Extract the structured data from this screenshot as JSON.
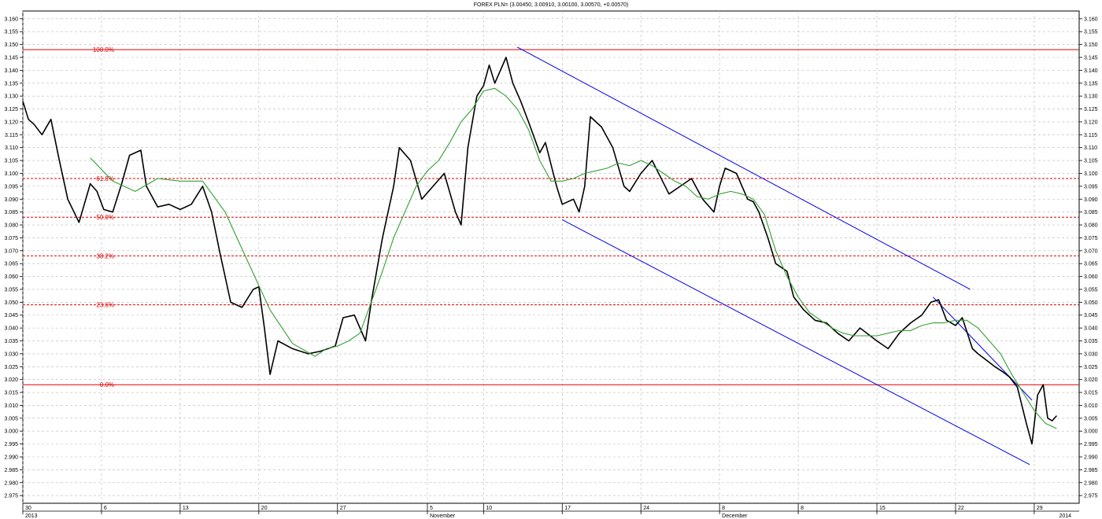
{
  "title": "FOREX PLN= (3.00450, 3.00910, 3.00100, 3.00570, +0.00570)",
  "chart_data": {
    "type": "line",
    "title": "FOREX PLN= (3.00450, 3.00910, 3.00100, 3.00570, +0.00570)",
    "ylim": [
      2.972,
      3.163
    ],
    "yticks": [
      "3.160",
      "3.155",
      "3.150",
      "3.145",
      "3.140",
      "3.135",
      "3.130",
      "3.125",
      "3.120",
      "3.115",
      "3.110",
      "3.105",
      "3.100",
      "3.095",
      "3.090",
      "3.085",
      "3.080",
      "3.075",
      "3.070",
      "3.065",
      "3.060",
      "3.055",
      "3.050",
      "3.045",
      "3.040",
      "3.035",
      "3.030",
      "3.025",
      "3.020",
      "3.015",
      "3.010",
      "3.005",
      "3.000",
      "2.995",
      "2.990",
      "2.985",
      "2.980",
      "2.975"
    ],
    "x_day_ticks": [
      {
        "label": "30",
        "x": 30
      },
      {
        "label": "6",
        "x": 37
      },
      {
        "label": "13",
        "x": 44
      },
      {
        "label": "20",
        "x": 51
      },
      {
        "label": "27",
        "x": 58
      },
      {
        "label": "5",
        "x": 66
      },
      {
        "label": "10",
        "x": 71
      },
      {
        "label": "17",
        "x": 78
      },
      {
        "label": "24",
        "x": 85
      },
      {
        "label": "8",
        "x": 92
      },
      {
        "label": "8",
        "x": 99
      },
      {
        "label": "15",
        "x": 106
      },
      {
        "label": "22",
        "x": 113
      },
      {
        "label": "29",
        "x": 120
      }
    ],
    "x_period_labels": [
      {
        "label": "2013",
        "x": 30
      },
      {
        "label": "November",
        "x": 66
      },
      {
        "label": "December",
        "x": 92
      },
      {
        "label": "2014",
        "x": 122
      }
    ],
    "xlim": [
      30,
      124
    ],
    "grid": true,
    "series": [
      {
        "color": "#000000",
        "points": [
          [
            30,
            3.128
          ],
          [
            30.5,
            3.121
          ],
          [
            31,
            3.119
          ],
          [
            31.7,
            3.115
          ],
          [
            32.5,
            3.121
          ],
          [
            33.2,
            3.106
          ],
          [
            34,
            3.09
          ],
          [
            35,
            3.081
          ],
          [
            36,
            3.096
          ],
          [
            36.6,
            3.093
          ],
          [
            37.2,
            3.086
          ],
          [
            38,
            3.085
          ],
          [
            38.8,
            3.096
          ],
          [
            39.5,
            3.107
          ],
          [
            40.5,
            3.109
          ],
          [
            41,
            3.095
          ],
          [
            42,
            3.087
          ],
          [
            43,
            3.088
          ],
          [
            44,
            3.086
          ],
          [
            45,
            3.088
          ],
          [
            46,
            3.095
          ],
          [
            46.8,
            3.085
          ],
          [
            47.5,
            3.07
          ],
          [
            48.5,
            3.05
          ],
          [
            49.5,
            3.048
          ],
          [
            50.5,
            3.055
          ],
          [
            51,
            3.056
          ],
          [
            51.5,
            3.04
          ],
          [
            52,
            3.022
          ],
          [
            52.7,
            3.035
          ],
          [
            54,
            3.032
          ],
          [
            55.4,
            3.03
          ],
          [
            56.5,
            3.031
          ],
          [
            57.8,
            3.033
          ],
          [
            58.5,
            3.044
          ],
          [
            59.5,
            3.045
          ],
          [
            60.5,
            3.035
          ],
          [
            61,
            3.05
          ],
          [
            62,
            3.075
          ],
          [
            63,
            3.095
          ],
          [
            63.5,
            3.11
          ],
          [
            64.5,
            3.105
          ],
          [
            65.5,
            3.09
          ],
          [
            66.5,
            3.095
          ],
          [
            67.5,
            3.1
          ],
          [
            68.5,
            3.085
          ],
          [
            69,
            3.08
          ],
          [
            69.6,
            3.11
          ],
          [
            70.4,
            3.13
          ],
          [
            71,
            3.134
          ],
          [
            71.5,
            3.142
          ],
          [
            72,
            3.135
          ],
          [
            73,
            3.145
          ],
          [
            73.6,
            3.135
          ],
          [
            74.3,
            3.128
          ],
          [
            75,
            3.12
          ],
          [
            76,
            3.108
          ],
          [
            76.5,
            3.112
          ],
          [
            77.5,
            3.095
          ],
          [
            78,
            3.088
          ],
          [
            79,
            3.09
          ],
          [
            79.5,
            3.085
          ],
          [
            80,
            3.095
          ],
          [
            80.5,
            3.122
          ],
          [
            81.5,
            3.118
          ],
          [
            82.5,
            3.11
          ],
          [
            83.5,
            3.095
          ],
          [
            84,
            3.093
          ],
          [
            85,
            3.1
          ],
          [
            86,
            3.105
          ],
          [
            87.5,
            3.092
          ],
          [
            88.5,
            3.095
          ],
          [
            89.5,
            3.098
          ],
          [
            90.5,
            3.09
          ],
          [
            91.5,
            3.085
          ],
          [
            92,
            3.095
          ],
          [
            92.5,
            3.102
          ],
          [
            93.5,
            3.1
          ],
          [
            94.5,
            3.09
          ],
          [
            95,
            3.089
          ],
          [
            95.5,
            3.085
          ],
          [
            96.3,
            3.075
          ],
          [
            97,
            3.065
          ],
          [
            98,
            3.062
          ],
          [
            98.6,
            3.052
          ],
          [
            99.5,
            3.047
          ],
          [
            100.5,
            3.043
          ],
          [
            101.5,
            3.042
          ],
          [
            102.5,
            3.038
          ],
          [
            103.5,
            3.035
          ],
          [
            104.5,
            3.04
          ],
          [
            106,
            3.035
          ],
          [
            107,
            3.032
          ],
          [
            108,
            3.038
          ],
          [
            109,
            3.042
          ],
          [
            110,
            3.045
          ],
          [
            110.8,
            3.05
          ],
          [
            111.5,
            3.051
          ],
          [
            112.2,
            3.043
          ],
          [
            113,
            3.041
          ],
          [
            113.6,
            3.044
          ],
          [
            114.5,
            3.032
          ],
          [
            115,
            3.03
          ],
          [
            116.5,
            3.025
          ],
          [
            117.2,
            3.023
          ],
          [
            117.8,
            3.021
          ],
          [
            118.5,
            3.017
          ],
          [
            119.3,
            3.003
          ],
          [
            119.8,
            2.995
          ],
          [
            120.3,
            3.014
          ],
          [
            120.8,
            3.018
          ],
          [
            121.2,
            3.005
          ],
          [
            121.6,
            3.004
          ],
          [
            122,
            3.006
          ]
        ]
      },
      {
        "color": "#33a033",
        "points": [
          [
            36,
            3.106
          ],
          [
            38,
            3.097
          ],
          [
            40,
            3.093
          ],
          [
            42,
            3.098
          ],
          [
            44,
            3.097
          ],
          [
            46,
            3.097
          ],
          [
            48,
            3.085
          ],
          [
            50,
            3.066
          ],
          [
            52,
            3.047
          ],
          [
            54,
            3.034
          ],
          [
            56,
            3.029
          ],
          [
            57,
            3.032
          ],
          [
            58,
            3.033
          ],
          [
            59,
            3.035
          ],
          [
            60,
            3.038
          ],
          [
            61,
            3.05
          ],
          [
            62,
            3.062
          ],
          [
            63,
            3.075
          ],
          [
            64,
            3.085
          ],
          [
            65,
            3.095
          ],
          [
            66,
            3.101
          ],
          [
            67,
            3.105
          ],
          [
            68,
            3.112
          ],
          [
            69,
            3.12
          ],
          [
            70,
            3.125
          ],
          [
            71,
            3.132
          ],
          [
            72,
            3.133
          ],
          [
            73,
            3.13
          ],
          [
            74,
            3.125
          ],
          [
            75,
            3.117
          ],
          [
            76,
            3.105
          ],
          [
            77,
            3.097
          ],
          [
            78,
            3.097
          ],
          [
            79,
            3.098
          ],
          [
            80,
            3.1
          ],
          [
            81,
            3.101
          ],
          [
            82,
            3.102
          ],
          [
            83,
            3.104
          ],
          [
            84,
            3.103
          ],
          [
            85,
            3.105
          ],
          [
            86,
            3.103
          ],
          [
            87,
            3.1
          ],
          [
            88,
            3.097
          ],
          [
            89,
            3.095
          ],
          [
            90,
            3.091
          ],
          [
            91,
            3.09
          ],
          [
            92,
            3.092
          ],
          [
            93,
            3.093
          ],
          [
            94,
            3.092
          ],
          [
            95,
            3.09
          ],
          [
            96,
            3.084
          ],
          [
            97,
            3.07
          ],
          [
            98,
            3.06
          ],
          [
            99,
            3.052
          ],
          [
            100,
            3.046
          ],
          [
            101,
            3.043
          ],
          [
            102,
            3.04
          ],
          [
            103,
            3.038
          ],
          [
            104,
            3.037
          ],
          [
            105,
            3.037
          ],
          [
            106,
            3.037
          ],
          [
            107,
            3.038
          ],
          [
            108,
            3.039
          ],
          [
            109,
            3.039
          ],
          [
            110,
            3.041
          ],
          [
            111,
            3.042
          ],
          [
            112,
            3.042
          ],
          [
            113,
            3.043
          ],
          [
            114,
            3.043
          ],
          [
            115,
            3.04
          ],
          [
            116,
            3.035
          ],
          [
            117,
            3.03
          ],
          [
            118,
            3.022
          ],
          [
            119,
            3.015
          ],
          [
            120,
            3.008
          ],
          [
            121,
            3.003
          ],
          [
            122,
            3.001
          ]
        ]
      }
    ],
    "trendlines": [
      {
        "color": "#0000ee",
        "from": [
          74,
          3.149
        ],
        "to": [
          114.3,
          3.055
        ]
      },
      {
        "color": "#0000ee",
        "from": [
          78,
          3.082
        ],
        "to": [
          119.6,
          2.987
        ]
      },
      {
        "color": "#0000ee",
        "from": [
          111,
          3.052
        ],
        "to": [
          119.8,
          3.012
        ]
      }
    ],
    "fibonacci": {
      "color": "#e00000",
      "levels": [
        {
          "label": "100.0%",
          "value": 3.148,
          "style": "solid"
        },
        {
          "label": "61.8%",
          "value": 3.098,
          "style": "dashed"
        },
        {
          "label": "50.0%",
          "value": 3.083,
          "style": "dashed"
        },
        {
          "label": "38.2%",
          "value": 3.068,
          "style": "dashed"
        },
        {
          "label": "23.6%",
          "value": 3.049,
          "style": "dashed"
        },
        {
          "label": "0.0%",
          "value": 3.018,
          "style": "solid"
        }
      ]
    }
  }
}
